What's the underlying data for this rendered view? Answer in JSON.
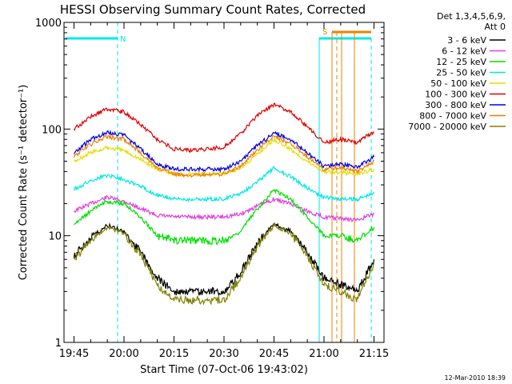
{
  "chart_data": {
    "type": "line",
    "title": "HESSI Observing Summary Count Rates, Corrected",
    "xlabel": "Start Time (07-Oct-06 19:43:02)",
    "ylabel": "Corrected Count Rate (s⁻¹ detector⁻¹)",
    "yscale": "log",
    "ylim": [
      1,
      1000
    ],
    "xlim_minutes": [
      19.7,
      21.3
    ],
    "x_ticks": [
      "19:45",
      "20:00",
      "20:15",
      "20:30",
      "20:45",
      "21:00",
      "21:15"
    ],
    "y_ticks": [
      "1",
      "10",
      "100",
      "1000"
    ],
    "grid": false,
    "legend_position": "right",
    "legend_header": [
      "Det 1,3,4,5,6,9,",
      "Att 0"
    ],
    "footer_date": "12-Mar-2010 18:39",
    "x_times": [
      "19:45",
      "19:50",
      "19:55",
      "20:00",
      "20:05",
      "20:10",
      "20:15",
      "20:20",
      "20:25",
      "20:30",
      "20:35",
      "20:40",
      "20:45",
      "20:50",
      "20:55",
      "21:00",
      "21:05",
      "21:10",
      "21:15"
    ],
    "series": [
      {
        "name": "3 - 6 keV",
        "color": "#000000",
        "values": [
          6.5,
          9.5,
          12.5,
          11.0,
          7.0,
          4.0,
          3.0,
          3.0,
          3.0,
          3.0,
          4.5,
          8.5,
          13.0,
          11.0,
          7.0,
          4.0,
          3.5,
          3.0,
          6.0
        ]
      },
      {
        "name": "6 - 12 keV",
        "color": "#e040e0",
        "values": [
          17,
          20,
          23,
          21,
          18,
          15.5,
          15,
          15,
          15,
          15,
          16,
          19,
          22,
          20,
          17,
          15,
          14.5,
          14,
          16
        ]
      },
      {
        "name": "12 - 25 keV",
        "color": "#00e000",
        "values": [
          13,
          17,
          21,
          20,
          15,
          10,
          9,
          9,
          9,
          9,
          11,
          18,
          27,
          22,
          15,
          10,
          10,
          9,
          12
        ]
      },
      {
        "name": "25 - 50 keV",
        "color": "#00e8e8",
        "values": [
          27,
          33,
          37,
          34,
          29,
          24,
          22,
          22,
          22,
          22,
          25,
          32,
          43,
          36,
          28,
          23,
          22,
          22,
          25
        ]
      },
      {
        "name": "50 - 100 keV",
        "color": "#e0e000",
        "values": [
          50,
          60,
          67,
          63,
          52,
          42,
          38,
          38,
          38,
          38,
          43,
          58,
          80,
          65,
          50,
          40,
          39,
          38,
          42
        ]
      },
      {
        "name": "100 - 300 keV",
        "color": "#e00000",
        "values": [
          100,
          130,
          155,
          145,
          110,
          80,
          65,
          63,
          65,
          68,
          90,
          135,
          170,
          145,
          105,
          75,
          80,
          75,
          95
        ]
      },
      {
        "name": "300 - 800 keV",
        "color": "#0000e0",
        "values": [
          60,
          80,
          93,
          88,
          65,
          47,
          42,
          42,
          42,
          42,
          50,
          70,
          92,
          80,
          60,
          45,
          47,
          44,
          55
        ]
      },
      {
        "name": "800 - 7000 keV",
        "color": "#f08000",
        "values": [
          55,
          72,
          85,
          80,
          60,
          43,
          38,
          37,
          37,
          38,
          45,
          64,
          85,
          73,
          55,
          42,
          44,
          40,
          50
        ]
      },
      {
        "name": "7000 - 20000 keV",
        "color": "#808000",
        "values": [
          6.0,
          9.0,
          12.0,
          10.5,
          6.5,
          3.5,
          2.5,
          2.5,
          2.5,
          2.5,
          4.0,
          8.0,
          12.5,
          10.5,
          6.5,
          3.5,
          3.0,
          2.5,
          5.5
        ]
      }
    ],
    "annotations": [
      {
        "text": "N",
        "color": "#00e8e8"
      },
      {
        "text": "S",
        "color": "#f08000"
      }
    ]
  }
}
